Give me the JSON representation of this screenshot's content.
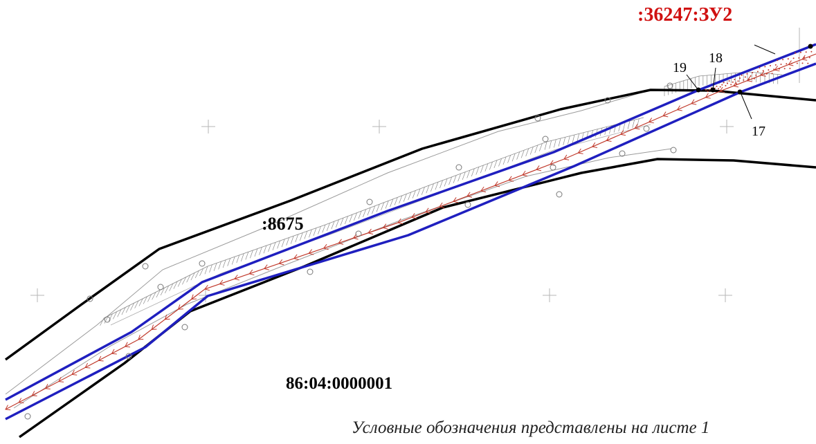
{
  "map": {
    "labels": {
      "parcel_zu2": ":36247:ЗУ2",
      "parcel_8675": ":8675",
      "quarter": "86:04:0000001"
    },
    "points": {
      "p17": "17",
      "p18": "18",
      "p19": "19"
    },
    "legend_note": "Условные обозначения представлены на листе 1",
    "colors": {
      "boundary": "#000000",
      "corridor": "#1f1fbf",
      "pipeline": "#c0392b",
      "highlight_label": "#d01010",
      "hatch": "#8a8a8a",
      "thin_line": "#9a9a9a"
    }
  }
}
